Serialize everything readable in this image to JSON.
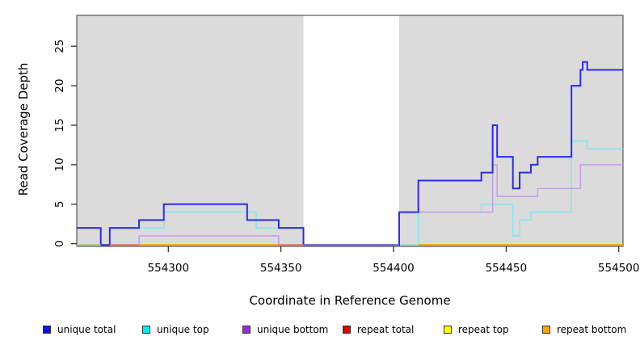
{
  "figure": {
    "x_axis_title": "Coordinate in Reference Genome",
    "y_axis_title": "Read Coverage Depth"
  },
  "legend": {
    "items": [
      {
        "label": "unique total",
        "color": "#0f0fe8"
      },
      {
        "label": "unique top",
        "color": "#00edf0"
      },
      {
        "label": "unique bottom",
        "color": "#a228e0"
      },
      {
        "label": "repeat total",
        "color": "#e00000"
      },
      {
        "label": "repeat top",
        "color": "#ffff00"
      },
      {
        "label": "repeat bottom",
        "color": "#ffa500"
      }
    ]
  },
  "chart_data": {
    "type": "line",
    "step": "after",
    "title": "",
    "xlabel": "Coordinate in Reference Genome",
    "ylabel": "Read Coverage Depth",
    "x_ticks": [
      554300,
      554350,
      554400,
      554450,
      554500
    ],
    "y_ticks": [
      0,
      5,
      10,
      15,
      20,
      25
    ],
    "x_range": [
      554259,
      554502
    ],
    "y_range": [
      0,
      28
    ],
    "grid": false,
    "legend_position": "bottom",
    "background_regions": [
      {
        "from": 554259,
        "to": 554360,
        "color": "#dbdbdb"
      },
      {
        "from": 554402.5,
        "to": 554502,
        "color": "#dbdbdb"
      }
    ],
    "series": [
      {
        "name": "repeat top",
        "color": "#f0f000",
        "width": 1.5,
        "points": [
          [
            554259,
            0
          ],
          [
            554502,
            0
          ]
        ]
      },
      {
        "name": "repeat total",
        "color": "#e97070",
        "width": 1.5,
        "points": [
          [
            554259,
            0
          ],
          [
            554502,
            0
          ]
        ]
      },
      {
        "name": "repeat bottom",
        "color": "#ffa500",
        "width": 1.8,
        "points": [
          [
            554259,
            0
          ],
          [
            554502,
            0
          ]
        ]
      },
      {
        "name": "unique top",
        "color": "#82eaf0",
        "width": 1.6,
        "points": [
          [
            554259,
            2
          ],
          [
            554270,
            0
          ],
          [
            554274,
            2
          ],
          [
            554298,
            4
          ],
          [
            554339,
            2
          ],
          [
            554360,
            0
          ],
          [
            554411,
            4
          ],
          [
            554439,
            5
          ],
          [
            554453,
            1
          ],
          [
            554456,
            3
          ],
          [
            554461,
            4
          ],
          [
            554479,
            13
          ],
          [
            554486,
            12
          ],
          [
            554502,
            12
          ]
        ]
      },
      {
        "name": "unique bottom",
        "color": "#c89fe9",
        "width": 1.6,
        "points": [
          [
            554259,
            2
          ],
          [
            554270,
            0
          ],
          [
            554287,
            1
          ],
          [
            554349,
            0
          ],
          [
            554402.5,
            4
          ],
          [
            554444,
            10
          ],
          [
            554446,
            6
          ],
          [
            554464,
            7
          ],
          [
            554483,
            10
          ],
          [
            554502,
            10
          ]
        ]
      },
      {
        "name": "unique total",
        "color": "#2b2bef",
        "width": 2,
        "points": [
          [
            554259,
            2
          ],
          [
            554270,
            0
          ],
          [
            554274,
            2
          ],
          [
            554287,
            3
          ],
          [
            554298,
            5
          ],
          [
            554335,
            3
          ],
          [
            554349,
            2
          ],
          [
            554360,
            0
          ],
          [
            554402.5,
            4
          ],
          [
            554411,
            8
          ],
          [
            554439,
            9
          ],
          [
            554444,
            15
          ],
          [
            554446,
            11
          ],
          [
            554453,
            7
          ],
          [
            554456,
            9
          ],
          [
            554461,
            10
          ],
          [
            554464,
            11
          ],
          [
            554479,
            20
          ],
          [
            554483,
            22
          ],
          [
            554484,
            23
          ],
          [
            554486,
            22
          ],
          [
            554502,
            22
          ]
        ]
      }
    ],
    "baseline_visible_segments": [
      {
        "color": "#93d693",
        "from": 554259,
        "to": 554270
      },
      {
        "color": "#e97070",
        "from": 554274,
        "to": 554287
      },
      {
        "color": "#ffa500",
        "from": 554287,
        "to": 554349
      },
      {
        "color": "#e97070",
        "from": 554349,
        "to": 554360
      },
      {
        "color": "#7e6be8",
        "from": 554360,
        "to": 554402.5
      },
      {
        "color": "#82eaf0",
        "from": 554403,
        "to": 554411
      },
      {
        "color": "#ffa500",
        "from": 554411,
        "to": 554502
      }
    ]
  }
}
